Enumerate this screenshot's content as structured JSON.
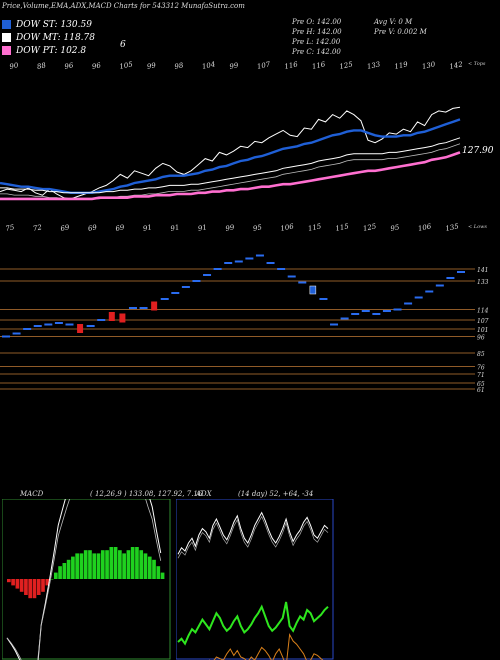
{
  "header": {
    "title": "Price,Volume,EMA,ADX,MACD Charts for 543312 MunafaSutra.com",
    "info_rows": [
      {
        "a": "Pre O: 142.00",
        "b": "Avg V: 0 M"
      },
      {
        "a": "Pre H: 142.00",
        "b": "Pre V: 0.002 M"
      },
      {
        "a": "Pre L: 142.00",
        "b": ""
      },
      {
        "a": "Pre C: 142.00",
        "b": ""
      }
    ],
    "legend": [
      {
        "label": "DOW ST: 130.59",
        "color": "#1f5fd6"
      },
      {
        "label": "DOW MT: 118.78",
        "color": "#ffffff"
      },
      {
        "label": "DOW PT: 102.8",
        "color": "#ff6fd0"
      }
    ],
    "legend_extra": "6"
  },
  "chart_data": [
    {
      "type": "line",
      "panel": "price-ema",
      "top_label": "< Tops",
      "tops": [
        "90",
        "88",
        "96",
        "96",
        "105",
        "99",
        "98",
        "104",
        "99",
        "107",
        "116",
        "116",
        "125",
        "133",
        "119",
        "130",
        "142"
      ],
      "bottom_label": "< Lows",
      "lows": [
        "75",
        "72",
        "69",
        "69",
        "69",
        "91",
        "91",
        "91",
        "99",
        "95",
        "106",
        "115",
        "115",
        "125",
        "95",
        "106",
        "135"
      ],
      "last_price_label": "127.90",
      "ylim": [
        60,
        150
      ],
      "series": [
        {
          "name": "Close",
          "color": "#ffffff",
          "values": [
            71,
            73,
            72,
            71,
            74,
            70,
            68,
            73,
            69,
            66,
            65,
            67,
            69,
            71,
            74,
            76,
            80,
            85,
            82,
            88,
            86,
            84,
            90,
            94,
            92,
            87,
            85,
            88,
            93,
            98,
            96,
            103,
            101,
            104,
            108,
            107,
            112,
            111,
            115,
            118,
            121,
            117,
            116,
            123,
            122,
            130,
            128,
            134,
            131,
            137,
            134,
            129,
            113,
            111,
            114,
            119,
            118,
            122,
            120,
            128,
            125,
            134,
            137,
            136,
            139,
            140
          ]
        },
        {
          "name": "DOW ST",
          "color": "#1f5fd6",
          "values": [
            78,
            77,
            76,
            75,
            75,
            74,
            73,
            73,
            72,
            71,
            70,
            70,
            70,
            70,
            71,
            72,
            73,
            75,
            76,
            78,
            79,
            80,
            81,
            83,
            84,
            84,
            84,
            85,
            86,
            88,
            89,
            91,
            92,
            94,
            96,
            97,
            99,
            100,
            102,
            104,
            106,
            107,
            108,
            110,
            111,
            113,
            115,
            117,
            118,
            120,
            121,
            121,
            119,
            117,
            116,
            116,
            116,
            117,
            117,
            119,
            120,
            122,
            124,
            126,
            128,
            130
          ]
        },
        {
          "name": "DOW MT",
          "color": "#ffffff",
          "values": [
            74,
            74,
            73,
            73,
            73,
            72,
            72,
            71,
            71,
            70,
            70,
            70,
            70,
            70,
            70,
            71,
            71,
            72,
            72,
            73,
            73,
            74,
            74,
            75,
            76,
            76,
            76,
            77,
            77,
            78,
            79,
            80,
            81,
            82,
            83,
            84,
            85,
            86,
            87,
            88,
            90,
            91,
            92,
            93,
            94,
            96,
            97,
            98,
            99,
            101,
            102,
            102,
            102,
            102,
            102,
            103,
            103,
            104,
            105,
            106,
            107,
            108,
            110,
            111,
            113,
            115
          ]
        },
        {
          "name": "DOW PT",
          "color": "#ff6fd0",
          "values": [
            65,
            65,
            65,
            65,
            65,
            65,
            65,
            65,
            65,
            65,
            65,
            65,
            65,
            65,
            66,
            66,
            66,
            66,
            66,
            67,
            67,
            67,
            68,
            68,
            68,
            69,
            69,
            69,
            70,
            70,
            71,
            71,
            72,
            72,
            73,
            73,
            74,
            75,
            75,
            76,
            77,
            77,
            78,
            79,
            80,
            81,
            82,
            83,
            84,
            85,
            86,
            87,
            88,
            88,
            89,
            90,
            91,
            92,
            93,
            94,
            95,
            97,
            98,
            99,
            101,
            103
          ]
        }
      ]
    },
    {
      "type": "scatter",
      "panel": "renko-levels",
      "levels": [
        "141",
        "133",
        "114",
        "107",
        "101",
        "96",
        "85",
        "76",
        "71",
        "65",
        "61"
      ],
      "ylim": [
        55,
        155
      ],
      "bricks_x": [
        1,
        2,
        3,
        4,
        5,
        6,
        7,
        8,
        9,
        10,
        11,
        12,
        13,
        14,
        15,
        16,
        17,
        18,
        19,
        20,
        21,
        22,
        23,
        24,
        25,
        26,
        27,
        28,
        29,
        30,
        31,
        32,
        33,
        34,
        35,
        36,
        37,
        38,
        39,
        40,
        41,
        42,
        43,
        44
      ],
      "bricks_y": [
        96,
        98,
        101,
        103,
        104,
        105,
        104,
        101,
        103,
        107,
        109,
        108,
        115,
        115,
        116,
        121,
        125,
        129,
        133,
        137,
        141,
        145,
        146,
        148,
        150,
        145,
        141,
        136,
        132,
        127,
        121,
        104,
        108,
        111,
        113,
        111,
        113,
        114,
        118,
        122,
        126,
        130,
        135,
        139
      ],
      "red_bricks": [
        8,
        11,
        12,
        15
      ]
    },
    {
      "type": "bar",
      "panel": "macd",
      "title": "MACD",
      "params": "( 12,26,9 ) 133.08, 127.92, 7.16",
      "hist": [
        -1,
        -2,
        -3,
        -4,
        -5,
        -6,
        -6,
        -5,
        -4,
        -2,
        0,
        2,
        4,
        5,
        6,
        7,
        8,
        8,
        9,
        9,
        8,
        8,
        9,
        9,
        10,
        10,
        9,
        8,
        9,
        10,
        10,
        9,
        8,
        7,
        6,
        4,
        2
      ]
    },
    {
      "type": "line",
      "panel": "adx",
      "title": "ADX",
      "params": "(14 day) 52, +64, -34",
      "adx": [
        48,
        52,
        50,
        55,
        58,
        53,
        60,
        64,
        62,
        58,
        66,
        70,
        65,
        60,
        57,
        62,
        68,
        72,
        64,
        58,
        55,
        60,
        66,
        70,
        74,
        69,
        63,
        58,
        55,
        59,
        64,
        70,
        62,
        56,
        60,
        63,
        68,
        71,
        66,
        60,
        58,
        62,
        66,
        64
      ],
      "plus_di": [
        20,
        22,
        19,
        24,
        28,
        26,
        30,
        34,
        31,
        28,
        33,
        38,
        35,
        30,
        27,
        29,
        33,
        36,
        30,
        26,
        28,
        31,
        35,
        38,
        42,
        36,
        30,
        27,
        29,
        32,
        35,
        45,
        30,
        27,
        32,
        36,
        34,
        40,
        38,
        33,
        35,
        37,
        40,
        42
      ],
      "minus_di": [
        18,
        16,
        17,
        15,
        14,
        13,
        15,
        14,
        16,
        18,
        17,
        20,
        19,
        18,
        22,
        25,
        21,
        24,
        20,
        19,
        17,
        20,
        18,
        22,
        26,
        24,
        21,
        17,
        22,
        25,
        20,
        14,
        34,
        30,
        28,
        25,
        22,
        17,
        18,
        22,
        21,
        19,
        17,
        16
      ]
    }
  ]
}
